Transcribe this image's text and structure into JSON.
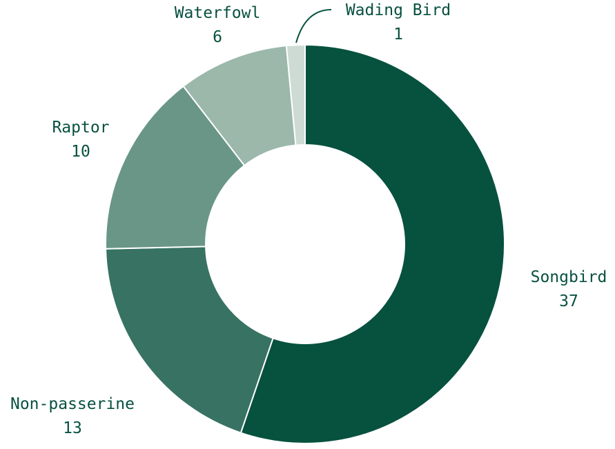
{
  "chart_data": {
    "type": "pie",
    "variant": "donut",
    "title": "",
    "slices": [
      {
        "label": "Songbird",
        "value": 37,
        "color": "#07513f"
      },
      {
        "label": "Non-passerine",
        "value": 13,
        "color": "#377262"
      },
      {
        "label": "Raptor",
        "value": 10,
        "color": "#699687"
      },
      {
        "label": "Waterfowl",
        "value": 6,
        "color": "#9bb8ab"
      },
      {
        "label": "Wading Bird",
        "value": 1,
        "color": "#cddbd4"
      }
    ],
    "start": "top",
    "direction": "clockwise",
    "label_color": "#07513f"
  }
}
